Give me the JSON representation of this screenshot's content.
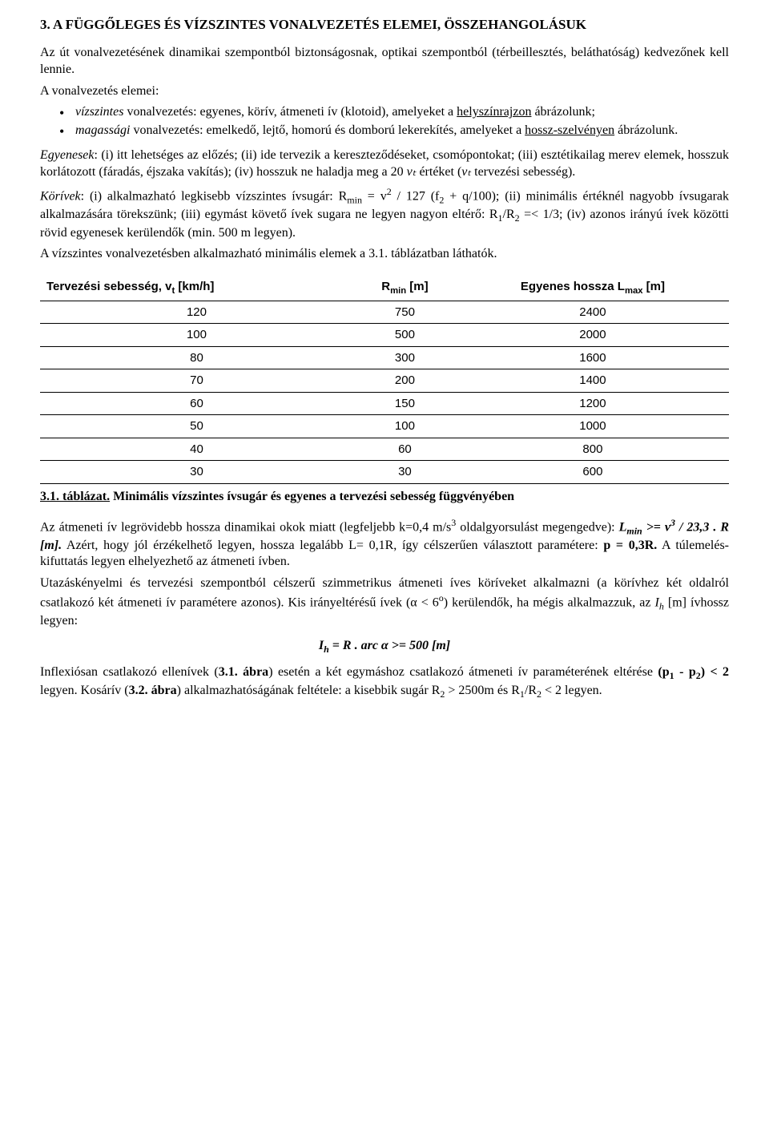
{
  "title": "3. A FÜGGŐLEGES ÉS VÍZSZINTES VONALVEZETÉS ELEMEI, ÖSSZEHANGOLÁSUK",
  "intro": "Az út vonalvezetésének dinamikai szempontból biztonságosnak, optikai szempontból (térbeillesztés, beláthatóság) kedvezőnek kell lennie.",
  "elemei_lead": "A vonalvezetés elemei:",
  "bullet1_pre": "vízszintes",
  "bullet1_mid": " vonalvezetés: egyenes, körív, átmeneti ív (klotoid), amelyeket a ",
  "bullet1_u": "helyszínrajzon",
  "bullet1_post": " ábrázolunk;",
  "bullet2_pre": "magassági",
  "bullet2_mid": " vonalvezetés: emelkedő, lejtő, homorú és domború lekerekítés, amelyeket a ",
  "bullet2_u": "hossz-szelvényen",
  "bullet2_post": " ábrázolunk.",
  "egyenesek_label": "Egyenesek",
  "egyenesek_body": ": (i) itt lehetséges az előzés; (ii) ide tervezik a kereszteződéseket, csomópontokat; (iii) esztétikailag merev elemek, hosszuk korlátozott (fáradás, éjszaka vakítás); (iv) hosszuk ne haladja meg a 20 ",
  "vt1": "vₜ",
  "egyenesek_body2": " értéket (",
  "vt2": "vₜ",
  "egyenesek_body3": " tervezési sebesség).",
  "korivek_label": "Körívek",
  "korivek_body1": ": (i) alkalmazható legkisebb vízszintes ívsugár: R",
  "korivek_min": "min",
  "korivek_body2": " = v",
  "korivek_sq": "2",
  "korivek_body3": " / 127 (f",
  "korivek_f2": "2",
  "korivek_body4": " + q/100); (ii) minimális értéknél nagyobb ívsugarak alkalmazására törekszünk; (iii) egymást követő ívek sugara ne legyen nagyon eltérő: R",
  "korivek_r1": "1",
  "korivek_body5": "/R",
  "korivek_r2": "2",
  "korivek_body6": " =< 1/3; (iv) azonos irányú ívek közötti rövid egyenesek kerülendők (min. 500 m legyen).",
  "vonal_min": "A vízszintes vonalvezetésben alkalmazható minimális elemek a 3.1. táblázatban láthatók.",
  "table": {
    "columns": [
      "Tervezési sebesség, vₜ [km/h]",
      "Rₘᵢₙ [m]",
      "Egyenes hossza Lₘₐₓ [m]"
    ],
    "col_html": [
      "Tervezési sebesség, v<sub>t</sub> [km/h]",
      "R<sub>min</sub> [m]",
      "Egyenes hossza L<sub>max</sub> [m]"
    ],
    "rows": [
      [
        "120",
        "750",
        "2400"
      ],
      [
        "100",
        "500",
        "2000"
      ],
      [
        "80",
        "300",
        "1600"
      ],
      [
        "70",
        "200",
        "1400"
      ],
      [
        "60",
        "150",
        "1200"
      ],
      [
        "50",
        "100",
        "1000"
      ],
      [
        "40",
        "60",
        "800"
      ],
      [
        "30",
        "30",
        "600"
      ]
    ],
    "header_fontsize": 15,
    "body_fontsize": 15,
    "border_color": "#000000"
  },
  "caption_u": "3.1. táblázat.",
  "caption_rest": " Minimális vízszintes ívsugár és egyenes a tervezési sebesség függvényében",
  "atmeneti1": "Az átmeneti ív legrövidebb hossza dinamikai okok miatt (legfeljebb k=0,4 m/s",
  "atmeneti_sup": "3",
  "atmeneti2": " oldalgyorsulást megengedve): ",
  "lmin": "L",
  "lmin_sub": "min",
  "lmin_formula": " >= v",
  "lmin_sup": "3",
  "lmin_formula2": " / 23,3 . R [m].",
  "atmeneti3": " Azért, hogy jól érzékelhető legyen, hossza legalább L= 0,1R, így célszerűen választott paramétere: ",
  "p03r": "p = 0,3R.",
  "atmeneti4": " A túlemelés-kifuttatás legyen elhelyezhető az átmeneti ívben.",
  "utazas1": "Utazáskényelmi és tervezési szempontból célszerű szimmetrikus átmeneti íves köríveket alkalmazni (a körívhez két oldalról csatlakozó két átmeneti ív paramétere azonos). Kis irányeltérésű ívek (α < 6",
  "utazas_deg": "o",
  "utazas2": ") kerülendők, ha mégis alkalmazzuk, az ",
  "ih": "I",
  "ih_sub": "h",
  "utazas3": " [m] ívhossz legyen:",
  "formula_ih": "I",
  "formula_ih_sub": "h",
  "formula_rest": " = R . arc α >= 500 [m]",
  "inflex1": "Inflexiósan csatlakozó ellenívek (",
  "inflex_fig1": "3.1. ábra",
  "inflex2": ") esetén a  két egymáshoz csatlakozó átmeneti ív paraméterének eltérése ",
  "inflex_p": "(p",
  "inflex_p1": "1",
  "inflex_p_mid": " - p",
  "inflex_p2": "2",
  "inflex_p_end": ") < 2",
  "inflex3": " legyen. Kosárív (",
  "inflex_fig2": "3.2. ábra",
  "inflex4": ") alkalmazhatóságának feltétele: a kisebbik sugár R",
  "inflex_r2a": "2",
  "inflex5": " > 2500m  és R",
  "inflex_r1": "1",
  "inflex6": "/R",
  "inflex_r2b": "2",
  "inflex7": " < 2 legyen."
}
